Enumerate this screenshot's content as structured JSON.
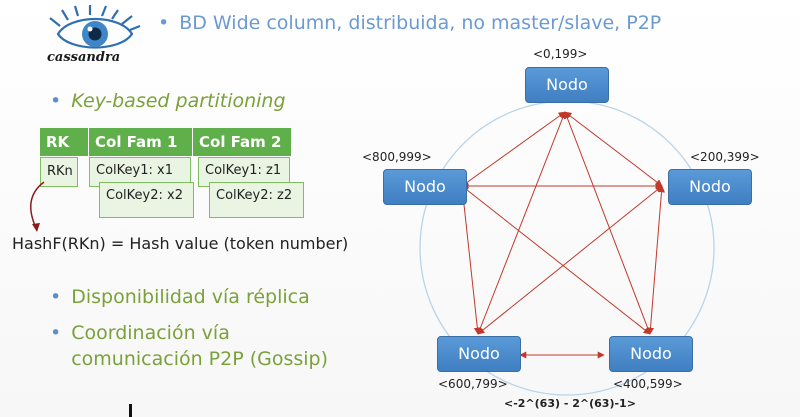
{
  "logo": {
    "text": "cassandra",
    "icon": "cassandra-eye-icon"
  },
  "bullets": {
    "title": "BD Wide column, distribuida, no master/slave, P2P",
    "key_partitioning": "Key-based partitioning",
    "availability": "Disponibilidad vía réplica",
    "coordination_line1": "Coordinación vía",
    "coordination_line2": "comunicación P2P (Gossip)"
  },
  "table": {
    "headers": [
      "RK",
      "Col Fam 1",
      "Col Fam 2"
    ],
    "row_key": "RKn",
    "cells": [
      "ColKey1: x1",
      "ColKey2: x2",
      "ColKey1: z1",
      "ColKey2: z2"
    ]
  },
  "hash_formula": "HashF(RKn) = Hash value (token number)",
  "ring": {
    "nodes": [
      {
        "label": "Nodo",
        "range": "<0,199>"
      },
      {
        "label": "Nodo",
        "range": "<200,399>"
      },
      {
        "label": "Nodo",
        "range": "<400,599>"
      },
      {
        "label": "Nodo",
        "range": "<600,799>"
      },
      {
        "label": "Nodo",
        "range": "<800,999>"
      }
    ],
    "token_range": "<-2^(63) - 2^(63)-1>"
  },
  "colors": {
    "bullet_green": "#7aa13a",
    "title_blue": "#6b9ad0",
    "node_blue": "#4a8ccf",
    "arrow_red": "#c0392b",
    "table_green": "#5fb04a"
  }
}
